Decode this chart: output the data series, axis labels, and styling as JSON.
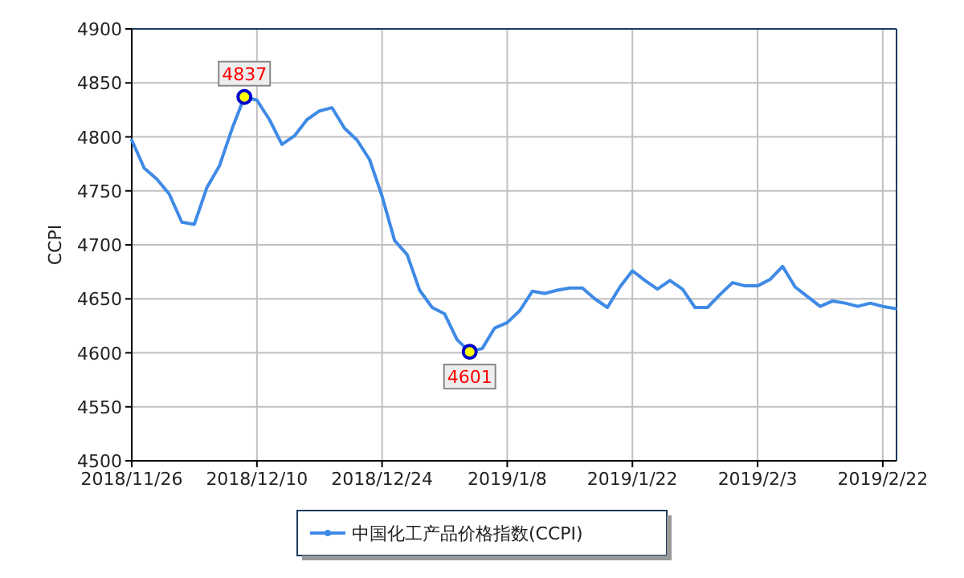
{
  "chart_data": {
    "type": "line",
    "ylabel": "CCPI",
    "ylim": [
      4500,
      4900
    ],
    "yticks": [
      4500,
      4550,
      4600,
      4650,
      4700,
      4750,
      4800,
      4850,
      4900
    ],
    "grid": true,
    "legend": "bottom",
    "marker": "none",
    "line_style": "solid",
    "categories": [
      "2018/11/26",
      null,
      null,
      null,
      null,
      null,
      null,
      null,
      null,
      null,
      "2018/12/10",
      null,
      null,
      null,
      null,
      null,
      null,
      null,
      null,
      null,
      "2018/12/24",
      null,
      null,
      null,
      null,
      null,
      null,
      null,
      null,
      null,
      "2019/1/8",
      null,
      null,
      null,
      null,
      null,
      null,
      null,
      null,
      null,
      "2019/1/22",
      null,
      null,
      null,
      null,
      null,
      null,
      null,
      null,
      null,
      "2019/2/3",
      null,
      null,
      null,
      null,
      null,
      null,
      null,
      null,
      null,
      "2019/2/22",
      null
    ],
    "series": [
      {
        "name": "中国化工产品价格指数(CCPI)",
        "color": "#3f8ae6",
        "values": [
          4797,
          4771,
          4761,
          4747,
          4721,
          4719,
          4753,
          4773,
          4807,
          4837,
          4834,
          4816,
          4793,
          4801,
          4816,
          4824,
          4827,
          4808,
          4797,
          4779,
          4745,
          4704,
          4691,
          4658,
          4642,
          4636,
          4612,
          4601,
          4604,
          4623,
          4628,
          4639,
          4657,
          4655,
          4658,
          4660,
          4660,
          4650,
          4642,
          4661,
          4676,
          4667,
          4659,
          4667,
          4659,
          4642,
          4642,
          4654,
          4665,
          4662,
          4662,
          4668,
          4680,
          4661,
          4652,
          4643,
          4648,
          4646,
          4643,
          4646,
          4643,
          4641
        ],
        "value_labels": [
          null,
          null,
          null,
          null,
          null,
          null,
          null,
          null,
          null,
          "4837",
          null,
          null,
          null,
          null,
          null,
          null,
          null,
          null,
          null,
          null,
          null,
          null,
          null,
          null,
          null,
          null,
          null,
          "4601",
          null,
          null,
          null,
          null,
          null,
          null,
          null,
          null,
          null,
          null,
          null,
          null,
          null,
          null,
          null,
          null,
          null,
          null,
          null,
          null,
          null,
          null,
          null,
          null,
          null,
          null,
          null,
          null,
          null,
          null,
          null,
          null,
          null,
          null
        ]
      }
    ]
  }
}
